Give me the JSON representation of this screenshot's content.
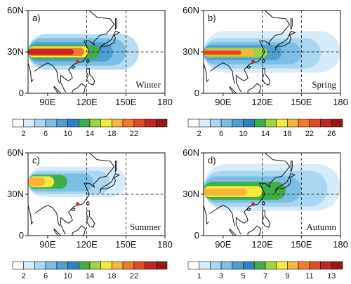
{
  "figure": {
    "panels": [
      {
        "id": "a",
        "panel_label": "a)",
        "season": "Winter",
        "y_ticks": [
          "60N",
          "30N",
          "0"
        ],
        "x_ticks": [
          "90E",
          "120E",
          "150E",
          "180"
        ],
        "colorbar_labels": [
          "2",
          "6",
          "10",
          "14",
          "18",
          "22"
        ],
        "colorbar_colors": [
          "#ffffff",
          "#d6ecfa",
          "#a9d7f1",
          "#7cbfe5",
          "#4f9fd3",
          "#2a83c6",
          "#3fae49",
          "#9bd53f",
          "#f4ea3a",
          "#f7b53a",
          "#f17a2b",
          "#e24a24",
          "#c3241f",
          "#951717"
        ],
        "bands": [
          {
            "lat": [
              17,
              43
            ],
            "lon": [
              75,
              160
            ],
            "color": "#b8ddf3"
          },
          {
            "lat": [
              20,
              40
            ],
            "lon": [
              75,
              150
            ],
            "color": "#7cbfe5"
          },
          {
            "lat": [
              23,
              37
            ],
            "lon": [
              75,
              140
            ],
            "color": "#4f9fd3"
          },
          {
            "lat": [
              25,
              35
            ],
            "lon": [
              75,
              130
            ],
            "color": "#3fae49"
          },
          {
            "lat": [
              26,
              34
            ],
            "lon": [
              75,
              122
            ],
            "color": "#f4ea3a"
          },
          {
            "lat": [
              27,
              33
            ],
            "lon": [
              75,
              118
            ],
            "color": "#f17a2b"
          },
          {
            "lat": [
              28,
              32
            ],
            "lon": [
              75,
              110
            ],
            "color": "#c3241f"
          }
        ]
      },
      {
        "id": "b",
        "panel_label": "b)",
        "season": "Spring",
        "y_ticks": [
          "60N",
          "30N",
          "0"
        ],
        "x_ticks": [
          "90E",
          "120E",
          "150E",
          "180"
        ],
        "colorbar_labels": [
          "2",
          "6",
          "10",
          "14",
          "18",
          "22",
          "26"
        ],
        "colorbar_colors": [
          "#ffffff",
          "#d6ecfa",
          "#a9d7f1",
          "#7cbfe5",
          "#4f9fd3",
          "#2a83c6",
          "#3fae49",
          "#9bd53f",
          "#f4ea3a",
          "#f7b53a",
          "#f17a2b",
          "#e24a24",
          "#c3241f",
          "#951717"
        ],
        "bands": [
          {
            "lat": [
              15,
              45
            ],
            "lon": [
              75,
              180
            ],
            "color": "#d6ecfa"
          },
          {
            "lat": [
              18,
              40
            ],
            "lon": [
              75,
              165
            ],
            "color": "#a9d7f1"
          },
          {
            "lat": [
              21,
              37
            ],
            "lon": [
              75,
              150
            ],
            "color": "#7cbfe5"
          },
          {
            "lat": [
              24,
              35
            ],
            "lon": [
              75,
              135
            ],
            "color": "#4f9fd3"
          },
          {
            "lat": [
              26,
              33
            ],
            "lon": [
              75,
              124
            ],
            "color": "#9bd53f"
          },
          {
            "lat": [
              27,
              32
            ],
            "lon": [
              75,
              114
            ],
            "color": "#f7b53a"
          },
          {
            "lat": [
              28,
              31
            ],
            "lon": [
              75,
              104
            ],
            "color": "#e24a24"
          }
        ]
      },
      {
        "id": "c",
        "panel_label": "c)",
        "season": "Summer",
        "y_ticks": [
          "60N",
          "30N",
          "0"
        ],
        "x_ticks": [
          "90E",
          "120E",
          "150E",
          "180"
        ],
        "colorbar_labels": [
          "2",
          "6",
          "10",
          "14",
          "18",
          "22"
        ],
        "colorbar_colors": [
          "#ffffff",
          "#d6ecfa",
          "#a9d7f1",
          "#7cbfe5",
          "#4f9fd3",
          "#2a83c6",
          "#3fae49",
          "#9bd53f",
          "#f4ea3a",
          "#f7b53a",
          "#f17a2b",
          "#e24a24",
          "#c3241f",
          "#951717"
        ],
        "bands": [
          {
            "lat": [
              28,
              50
            ],
            "lon": [
              75,
              150
            ],
            "color": "#d6ecfa"
          },
          {
            "lat": [
              30,
              47
            ],
            "lon": [
              75,
              138
            ],
            "color": "#a9d7f1"
          },
          {
            "lat": [
              32,
              45
            ],
            "lon": [
              75,
              125
            ],
            "color": "#7cbfe5"
          },
          {
            "lat": [
              34,
              44
            ],
            "lon": [
              75,
              105
            ],
            "color": "#3fae49"
          },
          {
            "lat": [
              35,
              43
            ],
            "lon": [
              75,
              95
            ],
            "color": "#f4ea3a"
          },
          {
            "lat": [
              36,
              42
            ],
            "lon": [
              75,
              88
            ],
            "color": "#f7b53a"
          }
        ]
      },
      {
        "id": "d",
        "panel_label": "d)",
        "season": "Autumn",
        "y_ticks": [
          "60N",
          "30N",
          "0"
        ],
        "x_ticks": [
          "90E",
          "120E",
          "150E",
          "180"
        ],
        "colorbar_labels": [
          "1",
          "3",
          "5",
          "7",
          "9",
          "11",
          "13"
        ],
        "colorbar_colors": [
          "#ffffff",
          "#d6ecfa",
          "#a9d7f1",
          "#7cbfe5",
          "#4f9fd3",
          "#2a83c6",
          "#3fae49",
          "#9bd53f",
          "#f4ea3a",
          "#f7b53a",
          "#f17a2b",
          "#e24a24",
          "#c3241f",
          "#951717"
        ],
        "bands": [
          {
            "lat": [
              18,
              52
            ],
            "lon": [
              75,
              180
            ],
            "color": "#d6ecfa"
          },
          {
            "lat": [
              21,
              47
            ],
            "lon": [
              75,
              170
            ],
            "color": "#a9d7f1"
          },
          {
            "lat": [
              24,
              43
            ],
            "lon": [
              75,
              150
            ],
            "color": "#7cbfe5"
          },
          {
            "lat": [
              26,
              39
            ],
            "lon": [
              75,
              138
            ],
            "color": "#3fae49"
          },
          {
            "lat": [
              28,
              36
            ],
            "lon": [
              75,
              120
            ],
            "color": "#f4ea3a"
          },
          {
            "lat": [
              29,
              34
            ],
            "lon": [
              75,
              108
            ],
            "color": "#f7b53a"
          }
        ]
      }
    ]
  }
}
